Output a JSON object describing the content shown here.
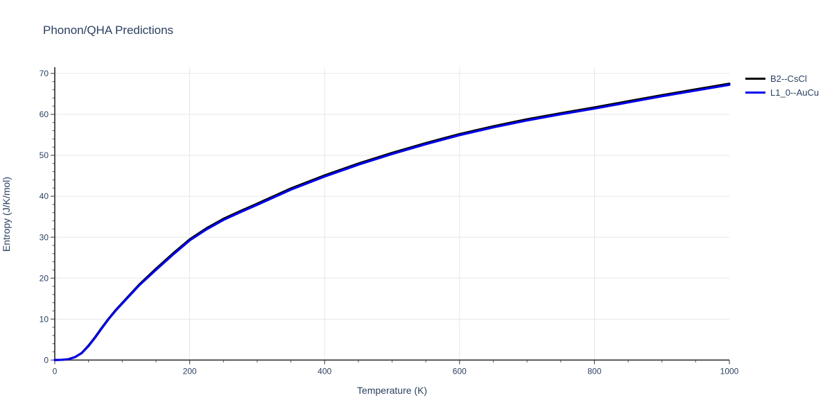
{
  "title": "Phonon/QHA Predictions",
  "colors": {
    "text": "#2a3f5f",
    "grid": "#e6e6e6",
    "axis_line": "#333333",
    "tick": "#555555",
    "background": "#ffffff",
    "series_b2": "#000000",
    "series_l10": "#0000ee"
  },
  "chart_data": {
    "type": "line",
    "title": "Phonon/QHA Predictions",
    "xlabel": "Temperature (K)",
    "ylabel": "Entropy (J/K/mol)",
    "xlim": [
      0,
      1000
    ],
    "ylim": [
      0,
      71.5
    ],
    "x_ticks": [
      0,
      200,
      400,
      600,
      800,
      1000
    ],
    "y_ticks": [
      0,
      10,
      20,
      30,
      40,
      50,
      60,
      70
    ],
    "x_minor_step": 50,
    "y_minor_step": 2,
    "grid": true,
    "legend_position": "outside-top-right",
    "x": [
      0,
      10,
      20,
      30,
      40,
      50,
      60,
      70,
      80,
      90,
      100,
      125,
      150,
      175,
      200,
      225,
      250,
      275,
      300,
      350,
      400,
      450,
      500,
      550,
      600,
      650,
      700,
      750,
      800,
      850,
      900,
      950,
      1000
    ],
    "series": [
      {
        "name": "B2--CsCl",
        "color": "#000000",
        "values": [
          0,
          0.05,
          0.2,
          0.75,
          1.75,
          3.55,
          5.65,
          7.95,
          10.15,
          12.15,
          13.95,
          18.4,
          22.3,
          26.0,
          29.5,
          32.2,
          34.5,
          36.4,
          38.2,
          41.9,
          45.1,
          48.0,
          50.6,
          53.0,
          55.2,
          57.1,
          58.8,
          60.3,
          61.7,
          63.2,
          64.7,
          66.1,
          67.5
        ]
      },
      {
        "name": "L1_0--AuCu",
        "color": "#0000ee",
        "values": [
          0,
          0.05,
          0.2,
          0.7,
          1.7,
          3.4,
          5.5,
          7.8,
          10.0,
          12.0,
          13.8,
          18.2,
          22.0,
          25.7,
          29.2,
          31.9,
          34.2,
          36.1,
          37.9,
          41.6,
          44.8,
          47.7,
          50.3,
          52.7,
          54.9,
          56.8,
          58.5,
          60.0,
          61.4,
          62.9,
          64.4,
          65.8,
          67.2
        ]
      }
    ]
  }
}
